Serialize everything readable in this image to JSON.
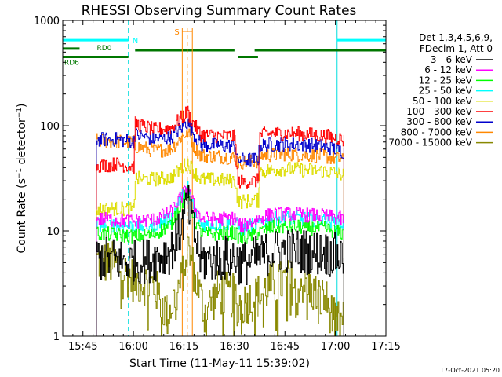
{
  "chart_data": {
    "type": "line",
    "title": "RHESSI Observing Summary Count Rates",
    "xlabel": "Start Time (11-May-11 15:39:02)",
    "ylabel": "Count Rate (s⁻¹ detector⁻¹)",
    "ylabel_parts": {
      "main": "Count Rate (s",
      "sup1": "−1",
      "mid": " detector",
      "sup2": "−1",
      "end": ")"
    },
    "y_scale": "log",
    "ylim": [
      1,
      1000
    ],
    "xlim_min": [
      -6,
      90
    ],
    "x_ticks": [
      {
        "label": "15:45",
        "min": 0
      },
      {
        "label": "16:00",
        "min": 15
      },
      {
        "label": "16:15",
        "min": 30
      },
      {
        "label": "16:30",
        "min": 45
      },
      {
        "label": "16:45",
        "min": 60
      },
      {
        "label": "17:00",
        "min": 75
      },
      {
        "label": "17:15",
        "min": 90
      }
    ],
    "y_ticks": [
      {
        "label": "1",
        "value": 1
      },
      {
        "label": "10",
        "value": 10
      },
      {
        "label": "100",
        "value": 100
      },
      {
        "label": "1000",
        "value": 1000
      }
    ],
    "legend": {
      "placement": "right",
      "header": [
        "Det 1,3,4,5,6,9,",
        "FDecim 1, Att 0"
      ]
    },
    "series": [
      {
        "name": "3 - 6 keV",
        "color": "#000000",
        "segments": [
          [
            [
              4,
              5.5
            ],
            [
              10,
              5.3
            ],
            [
              15,
              5.0
            ],
            [
              21,
              5.4
            ],
            [
              26,
              6.5
            ],
            [
              29,
              10
            ],
            [
              31,
              18
            ],
            [
              33,
              9
            ],
            [
              35,
              5.3
            ],
            [
              40,
              5.4
            ],
            [
              45,
              5.6
            ],
            [
              47,
              4.8
            ],
            [
              52,
              5.6
            ],
            [
              56,
              6.3
            ],
            [
              60,
              6.6
            ],
            [
              66,
              6.4
            ],
            [
              72,
              6.1
            ],
            [
              76,
              5.8
            ],
            [
              77.5,
              5.5
            ]
          ]
        ]
      },
      {
        "name": "6 - 12 keV",
        "color": "#ff00ff",
        "segments": [
          [
            [
              4,
              13
            ],
            [
              10,
              12.7
            ],
            [
              15,
              12.3
            ],
            [
              21,
              12.8
            ],
            [
              26,
              15
            ],
            [
              29,
              21
            ],
            [
              31,
              25
            ],
            [
              33,
              17
            ],
            [
              35,
              13
            ],
            [
              40,
              13
            ],
            [
              45,
              13.2
            ],
            [
              47,
              11
            ],
            [
              52,
              13
            ],
            [
              56,
              14.3
            ],
            [
              60,
              14.5
            ],
            [
              66,
              14.2
            ],
            [
              72,
              13.8
            ],
            [
              76,
              13.2
            ],
            [
              77.5,
              12.5
            ]
          ]
        ]
      },
      {
        "name": "12 - 25 keV",
        "color": "#00ff00",
        "segments": [
          [
            [
              4,
              9.5
            ],
            [
              10,
              9.2
            ],
            [
              15,
              8.8
            ],
            [
              21,
              9.3
            ],
            [
              26,
              11.5
            ],
            [
              29,
              18
            ],
            [
              31,
              23
            ],
            [
              33,
              13
            ],
            [
              35,
              9.3
            ],
            [
              40,
              9.4
            ],
            [
              45,
              9.6
            ],
            [
              47,
              8.2
            ],
            [
              52,
              9.6
            ],
            [
              56,
              10.8
            ],
            [
              60,
              11
            ],
            [
              66,
              10.8
            ],
            [
              72,
              10.4
            ],
            [
              76,
              9.8
            ],
            [
              77.5,
              9.3
            ]
          ]
        ]
      },
      {
        "name": "25 - 50 keV",
        "color": "#00ffff",
        "segments": [
          [
            [
              4,
              11.5
            ],
            [
              10,
              11.3
            ],
            [
              15,
              11
            ],
            [
              21,
              11.4
            ],
            [
              26,
              13.5
            ],
            [
              29,
              20
            ],
            [
              31,
              26
            ],
            [
              33,
              16
            ],
            [
              35,
              11.5
            ],
            [
              40,
              11.6
            ],
            [
              45,
              11.8
            ],
            [
              47,
              10.3
            ],
            [
              52,
              11.8
            ],
            [
              56,
              13
            ],
            [
              60,
              13.3
            ],
            [
              66,
              13
            ],
            [
              72,
              12.6
            ],
            [
              76,
              12
            ],
            [
              77.5,
              11.4
            ]
          ]
        ]
      },
      {
        "name": "50 - 100 keV",
        "color": "#dddd00",
        "segments": [
          [
            [
              4,
              16
            ],
            [
              10,
              16.4
            ],
            [
              15,
              15.8
            ],
            [
              15.5,
              31.5
            ],
            [
              21,
              31
            ],
            [
              26,
              32
            ],
            [
              29,
              39
            ],
            [
              31,
              45
            ],
            [
              33,
              36
            ],
            [
              35,
              31
            ],
            [
              40,
              30.5
            ],
            [
              45,
              30
            ],
            [
              46,
              19
            ],
            [
              52,
              19.4
            ],
            [
              52.5,
              37
            ],
            [
              56,
              38
            ],
            [
              60,
              39
            ],
            [
              66,
              38
            ],
            [
              72,
              37
            ],
            [
              76,
              35
            ],
            [
              77.5,
              34
            ]
          ]
        ]
      },
      {
        "name": "100 - 300 keV",
        "color": "#ff0000",
        "segments": [
          [
            [
              4,
              42
            ],
            [
              10,
              43
            ],
            [
              15,
              41
            ],
            [
              15.5,
              105
            ],
            [
              21,
              92
            ],
            [
              26,
              95
            ],
            [
              29,
              118
            ],
            [
              31,
              135
            ],
            [
              33,
              100
            ],
            [
              35,
              82
            ],
            [
              40,
              80
            ],
            [
              45,
              79
            ],
            [
              46,
              29
            ],
            [
              52,
              30
            ],
            [
              52.5,
              82
            ],
            [
              56,
              84
            ],
            [
              60,
              85
            ],
            [
              66,
              83
            ],
            [
              72,
              80
            ],
            [
              76,
              76
            ],
            [
              77.5,
              72
            ]
          ]
        ]
      },
      {
        "name": "300 - 800 keV",
        "color": "#0000cc",
        "segments": [
          [
            [
              4,
              74
            ],
            [
              10,
              74
            ],
            [
              15,
              71
            ],
            [
              15.5,
              82
            ],
            [
              21,
              75
            ],
            [
              26,
              77
            ],
            [
              29,
              95
            ],
            [
              31,
              108
            ],
            [
              33,
              82
            ],
            [
              35,
              66
            ],
            [
              40,
              65
            ],
            [
              45,
              64
            ],
            [
              46,
              47
            ],
            [
              52,
              48
            ],
            [
              52.5,
              65
            ],
            [
              56,
              66
            ],
            [
              60,
              67
            ],
            [
              66,
              66
            ],
            [
              72,
              63
            ],
            [
              76,
              59
            ],
            [
              77.5,
              56
            ]
          ]
        ]
      },
      {
        "name": "800 - 7000 keV",
        "color": "#ff8800",
        "segments": [
          [
            [
              4,
              72
            ],
            [
              10,
              71
            ],
            [
              15,
              69
            ],
            [
              15.5,
              64
            ],
            [
              21,
              58
            ],
            [
              26,
              60
            ],
            [
              29,
              76
            ],
            [
              31,
              88
            ],
            [
              33,
              63
            ],
            [
              35,
              52
            ],
            [
              40,
              51
            ],
            [
              45,
              50
            ],
            [
              46,
              45
            ],
            [
              52,
              46
            ],
            [
              52.5,
              52
            ],
            [
              56,
              53
            ],
            [
              60,
              54
            ],
            [
              66,
              53
            ],
            [
              72,
              51
            ],
            [
              76,
              48
            ],
            [
              77.5,
              46
            ]
          ]
        ]
      },
      {
        "name": "7000 - 15000 keV",
        "color": "#888800",
        "segments": [
          [
            [
              4,
              5.2
            ],
            [
              10,
              4.8
            ],
            [
              15,
              3.4
            ],
            [
              21,
              3.0
            ],
            [
              25,
              1.6
            ],
            [
              29,
              3.2
            ],
            [
              31,
              7
            ],
            [
              33,
              4
            ],
            [
              36,
              1.7
            ],
            [
              40,
              2.6
            ],
            [
              45,
              2.4
            ],
            [
              47,
              2.0
            ],
            [
              52,
              2.4
            ],
            [
              56,
              3.1
            ],
            [
              60,
              3.3
            ],
            [
              66,
              3.2
            ],
            [
              70,
              2.3
            ],
            [
              72,
              2.2
            ],
            [
              75,
              1.3
            ],
            [
              77.5,
              1.4
            ]
          ]
        ]
      }
    ],
    "overlays": {
      "saa_rd_segments": [
        {
          "label": "RD0",
          "color": "#007700",
          "min": [
            -6,
            -1
          ],
          "level": 540
        },
        {
          "label": "",
          "color": "#007700",
          "min": [
            15.5,
            45
          ],
          "level": 520
        },
        {
          "label": "",
          "color": "#007700",
          "min": [
            51,
            90
          ],
          "level": 520
        },
        {
          "label": "RD6",
          "color": "#007700",
          "min": [
            -6,
            13.5
          ],
          "level": 450
        },
        {
          "label": "",
          "color": "#007700",
          "min": [
            46,
            52
          ],
          "level": 450
        }
      ],
      "night_segments": [
        {
          "label": "N",
          "color": "#00ffff",
          "min": [
            -6,
            13.5
          ],
          "level": 650
        },
        {
          "label": "",
          "color": "#00ffff",
          "min": [
            75.5,
            90
          ],
          "level": 650
        }
      ],
      "night_lines": [
        {
          "min": 13.5,
          "style": "dashed"
        },
        {
          "min": 75.5,
          "style": "solid"
        },
        {
          "min": 90,
          "style": "dashed"
        }
      ],
      "flare_marker": {
        "label": "S",
        "color": "#ff8800",
        "min_start": 29.5,
        "min_peak": 31,
        "min_end": 32.5
      }
    },
    "grid": false
  },
  "footer": {
    "date": "17-Oct-2021 05:20"
  }
}
